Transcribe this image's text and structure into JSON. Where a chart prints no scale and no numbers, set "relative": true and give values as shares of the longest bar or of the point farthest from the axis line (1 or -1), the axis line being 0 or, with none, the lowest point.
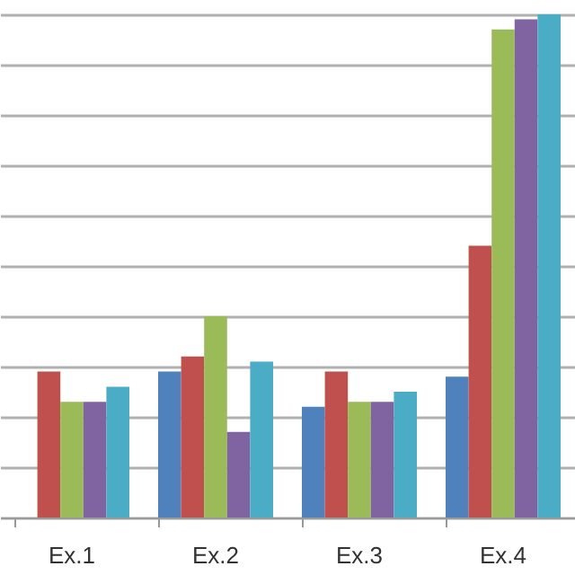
{
  "chart_data": {
    "type": "bar",
    "relative": true,
    "grid": "y",
    "categories": [
      "Ex.1",
      "Ex.2",
      "Ex.3",
      "Ex.4"
    ],
    "series": [
      {
        "color": "#4f81bd",
        "values": [
          null,
          0.29,
          0.22,
          0.28
        ]
      },
      {
        "color": "#c0504d",
        "values": [
          0.29,
          0.32,
          0.29,
          0.54
        ]
      },
      {
        "color": "#9bbb59",
        "values": [
          0.23,
          0.4,
          0.23,
          0.97
        ]
      },
      {
        "color": "#8064a2",
        "values": [
          0.23,
          0.17,
          0.23,
          0.99
        ]
      },
      {
        "color": "#4bacc6",
        "values": [
          0.26,
          0.31,
          0.25,
          1.0
        ]
      }
    ]
  }
}
